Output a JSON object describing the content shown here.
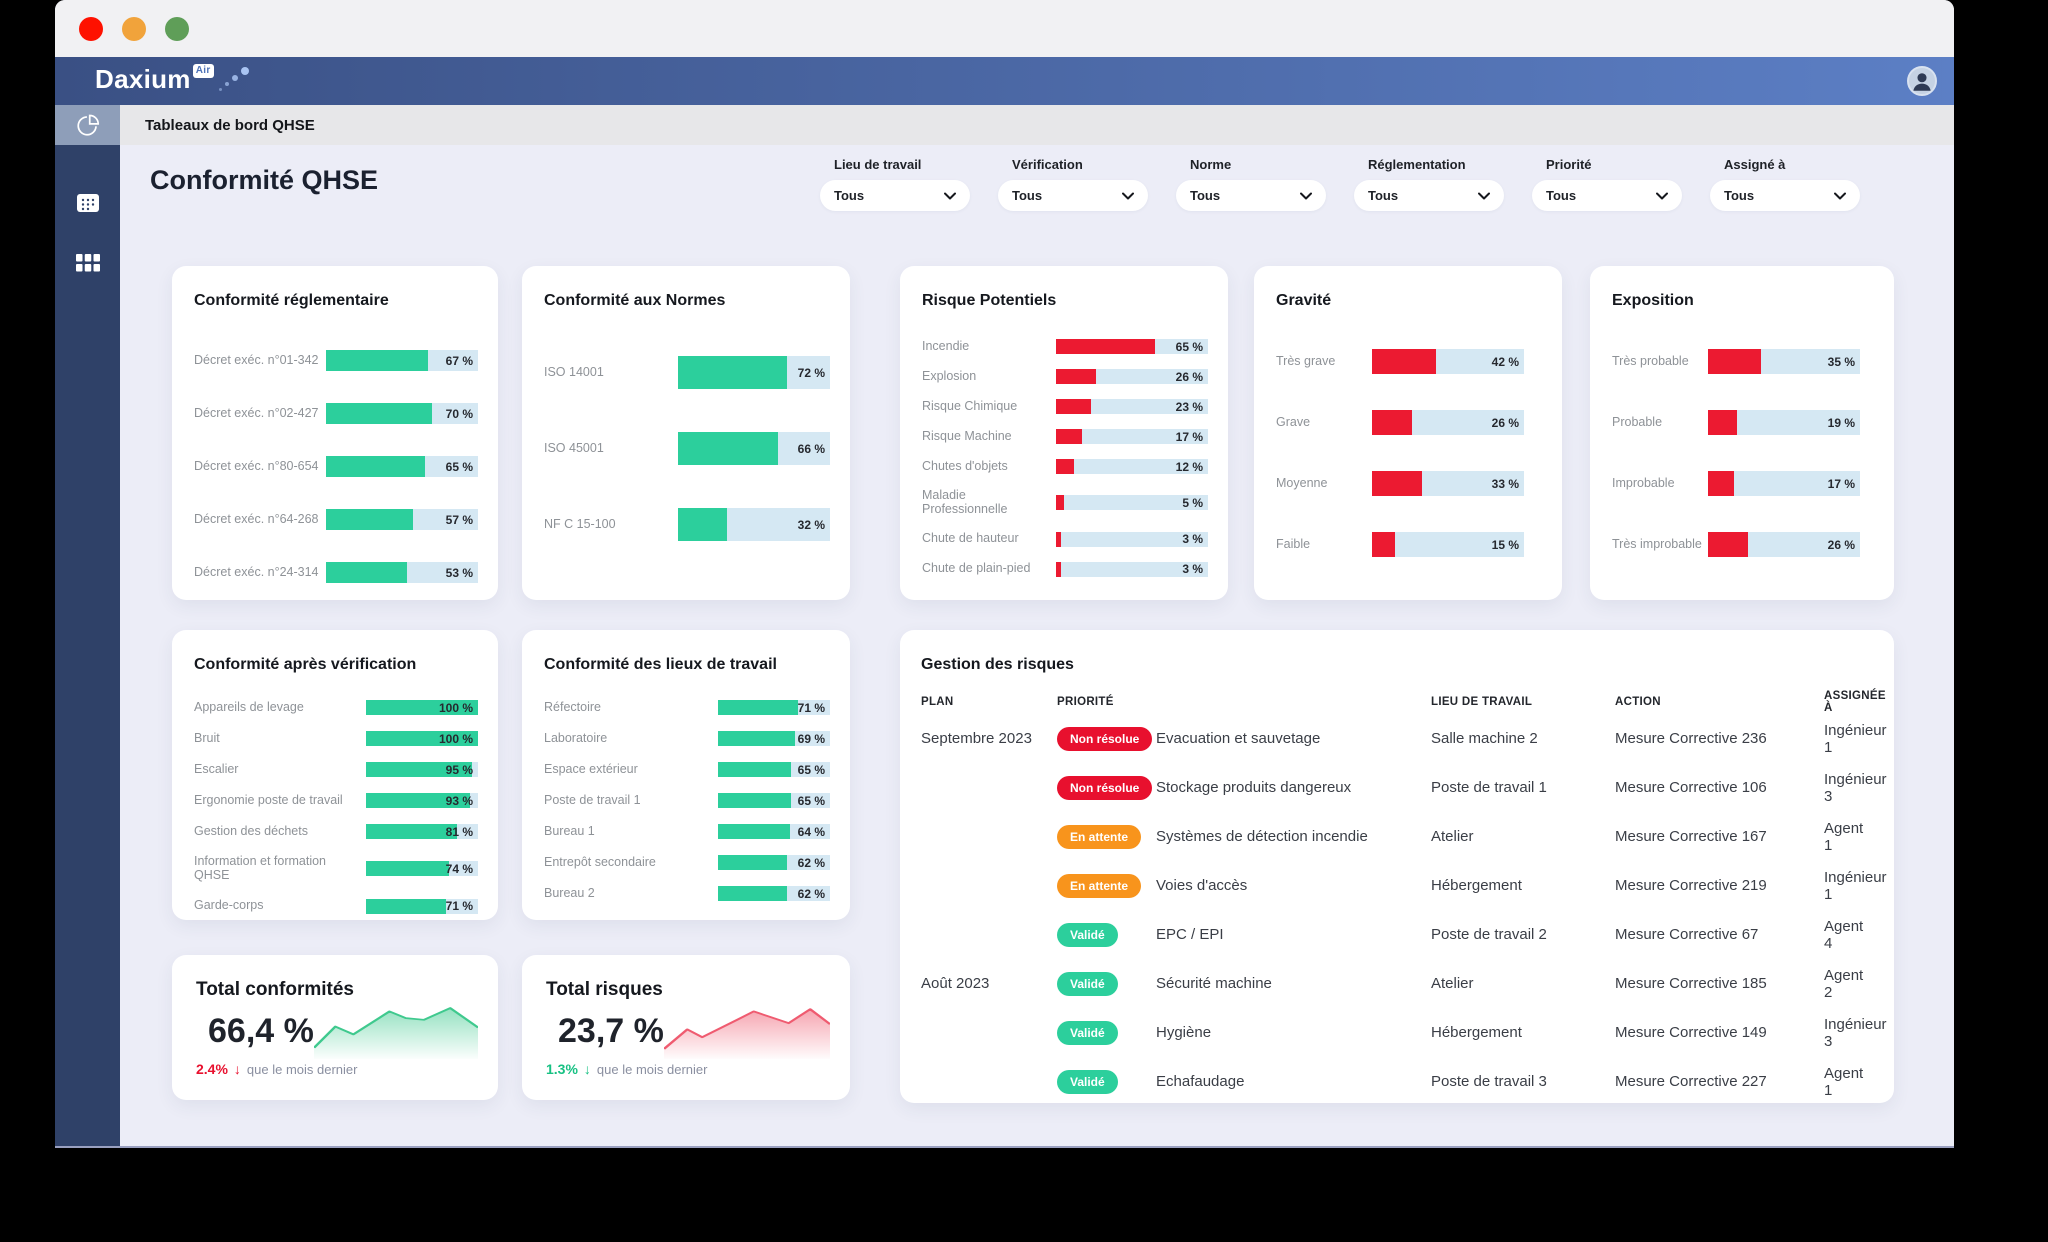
{
  "brand": {
    "name": "Daxium",
    "badge": "Air"
  },
  "breadcrumb": "Tableaux de bord QHSE",
  "page": {
    "title": "Conformité QHSE"
  },
  "filters": [
    {
      "label": "Lieu de travail",
      "value": "Tous"
    },
    {
      "label": "Vérification",
      "value": "Tous"
    },
    {
      "label": "Norme",
      "value": "Tous"
    },
    {
      "label": "Réglementation",
      "value": "Tous"
    },
    {
      "label": "Priorité",
      "value": "Tous"
    },
    {
      "label": "Assigné à",
      "value": "Tous"
    }
  ],
  "colors": {
    "green": "#2CCF9C",
    "red": "#EC1A31",
    "orange": "#F8941C",
    "track": "#D5E8F3",
    "traffic_red": "#FE1100",
    "traffic_orange": "#F1A33B",
    "traffic_green": "#5F9E58"
  },
  "sidebar": {
    "items": [
      {
        "icon": "pie-chart",
        "active": true
      },
      {
        "icon": "calendar",
        "active": false
      },
      {
        "icon": "grid",
        "active": false
      }
    ]
  },
  "cards": {
    "reglementaire": {
      "title": "Conformité réglementaire",
      "color": "green",
      "items": [
        {
          "label": "Décret exéc. n°01-342",
          "value": 67
        },
        {
          "label": "Décret exéc. n°02-427",
          "value": 70
        },
        {
          "label": "Décret exéc. n°80-654",
          "value": 65
        },
        {
          "label": "Décret exéc. n°64-268",
          "value": 57
        },
        {
          "label": "Décret exéc. n°24-314",
          "value": 53
        }
      ]
    },
    "normes": {
      "title": "Conformité aux Normes",
      "color": "green",
      "items": [
        {
          "label": "ISO 14001",
          "value": 72
        },
        {
          "label": "ISO 45001",
          "value": 66
        },
        {
          "label": "NF C 15-100",
          "value": 32
        }
      ]
    },
    "risques": {
      "title": "Risque Potentiels",
      "color": "red",
      "items": [
        {
          "label": "Incendie",
          "value": 65
        },
        {
          "label": "Explosion",
          "value": 26
        },
        {
          "label": "Risque Chimique",
          "value": 23
        },
        {
          "label": "Risque Machine",
          "value": 17
        },
        {
          "label": "Chutes d'objets",
          "value": 12
        },
        {
          "label": "Maladie Professionnelle",
          "value": 5
        },
        {
          "label": "Chute de hauteur",
          "value": 3
        },
        {
          "label": "Chute de plain-pied",
          "value": 3
        }
      ]
    },
    "gravite": {
      "title": "Gravité",
      "color": "red",
      "items": [
        {
          "label": "Très grave",
          "value": 42
        },
        {
          "label": "Grave",
          "value": 26
        },
        {
          "label": "Moyenne",
          "value": 33
        },
        {
          "label": "Faible",
          "value": 15
        }
      ]
    },
    "exposition": {
      "title": "Exposition",
      "color": "red",
      "items": [
        {
          "label": "Très probable",
          "value": 35
        },
        {
          "label": "Probable",
          "value": 19
        },
        {
          "label": "Improbable",
          "value": 17
        },
        {
          "label": "Très improbable",
          "value": 26
        }
      ]
    },
    "verification": {
      "title": "Conformité après vérification",
      "color": "green",
      "items": [
        {
          "label": "Appareils de levage",
          "value": 100
        },
        {
          "label": "Bruit",
          "value": 100
        },
        {
          "label": "Escalier",
          "value": 95
        },
        {
          "label": "Ergonomie poste de travail",
          "value": 93
        },
        {
          "label": "Gestion des déchets",
          "value": 81
        },
        {
          "label": "Information et formation QHSE",
          "value": 74
        },
        {
          "label": "Garde-corps",
          "value": 71
        }
      ]
    },
    "lieux": {
      "title": "Conformité des lieux de travail",
      "color": "green",
      "items": [
        {
          "label": "Réfectoire",
          "value": 71
        },
        {
          "label": "Laboratoire",
          "value": 69
        },
        {
          "label": "Espace extérieur",
          "value": 65
        },
        {
          "label": "Poste de travail 1",
          "value": 65
        },
        {
          "label": "Bureau 1",
          "value": 64
        },
        {
          "label": "Entrepôt secondaire",
          "value": 62
        },
        {
          "label": "Bureau 2",
          "value": 62
        }
      ]
    }
  },
  "totals": [
    {
      "title": "Total conformités",
      "value": "66,4 %",
      "delta": "2.4%",
      "delta_arrow": "↓",
      "delta_color": "#E8102E",
      "note": "que le mois dernier",
      "spark": {
        "color": "#3FC98E",
        "points": [
          [
            0,
            0.8
          ],
          [
            0.13,
            0.42
          ],
          [
            0.24,
            0.56
          ],
          [
            0.46,
            0.15
          ],
          [
            0.56,
            0.27
          ],
          [
            0.67,
            0.3
          ],
          [
            0.83,
            0.09
          ],
          [
            1,
            0.44
          ]
        ]
      }
    },
    {
      "title": "Total risques",
      "value": "23,7 %",
      "delta": "1.3%",
      "delta_arrow": "↓",
      "delta_color": "#17C183",
      "note": "que le mois dernier",
      "spark": {
        "color": "#EF5B70",
        "points": [
          [
            0,
            0.82
          ],
          [
            0.14,
            0.47
          ],
          [
            0.23,
            0.61
          ],
          [
            0.44,
            0.3
          ],
          [
            0.54,
            0.15
          ],
          [
            0.64,
            0.25
          ],
          [
            0.75,
            0.36
          ],
          [
            0.88,
            0.11
          ],
          [
            1,
            0.38
          ]
        ]
      }
    }
  ],
  "risk_table": {
    "title": "Gestion des risques",
    "columns": [
      "PLAN",
      "PRIORITÉ",
      "",
      "LIEU DE TRAVAIL",
      "ACTION",
      "ASSIGNÉE À"
    ],
    "statuses": {
      "non_resolue": {
        "label": "Non résolue",
        "color": "#E8102E"
      },
      "en_attente": {
        "label": "En attente",
        "color": "#F8941C"
      },
      "valide": {
        "label": "Validé",
        "color": "#2CCF9C"
      }
    },
    "rows": [
      {
        "plan": "Septembre 2023",
        "status": "non_resolue",
        "name": "Evacuation et sauvetage",
        "lieu": "Salle machine 2",
        "action": "Mesure Corrective 236",
        "assignee": "Ingénieur 1"
      },
      {
        "plan": "",
        "status": "non_resolue",
        "name": "Stockage produits dangereux",
        "lieu": "Poste de travail 1",
        "action": "Mesure Corrective 106",
        "assignee": "Ingénieur 3"
      },
      {
        "plan": "",
        "status": "en_attente",
        "name": "Systèmes de détection incendie",
        "lieu": "Atelier",
        "action": "Mesure Corrective 167",
        "assignee": "Agent 1"
      },
      {
        "plan": "",
        "status": "en_attente",
        "name": "Voies d'accès",
        "lieu": "Hébergement",
        "action": "Mesure Corrective 219",
        "assignee": "Ingénieur 1"
      },
      {
        "plan": "",
        "status": "valide",
        "name": "EPC / EPI",
        "lieu": "Poste de travail 2",
        "action": "Mesure Corrective 67",
        "assignee": "Agent 4"
      },
      {
        "plan": "Août 2023",
        "status": "valide",
        "name": "Sécurité machine",
        "lieu": "Atelier",
        "action": "Mesure Corrective 185",
        "assignee": "Agent 2"
      },
      {
        "plan": "",
        "status": "valide",
        "name": "Hygiène",
        "lieu": "Hébergement",
        "action": "Mesure Corrective 149",
        "assignee": "Ingénieur 3"
      },
      {
        "plan": "",
        "status": "valide",
        "name": "Echafaudage",
        "lieu": "Poste de travail 3",
        "action": "Mesure Corrective 227",
        "assignee": "Agent 1"
      }
    ]
  }
}
